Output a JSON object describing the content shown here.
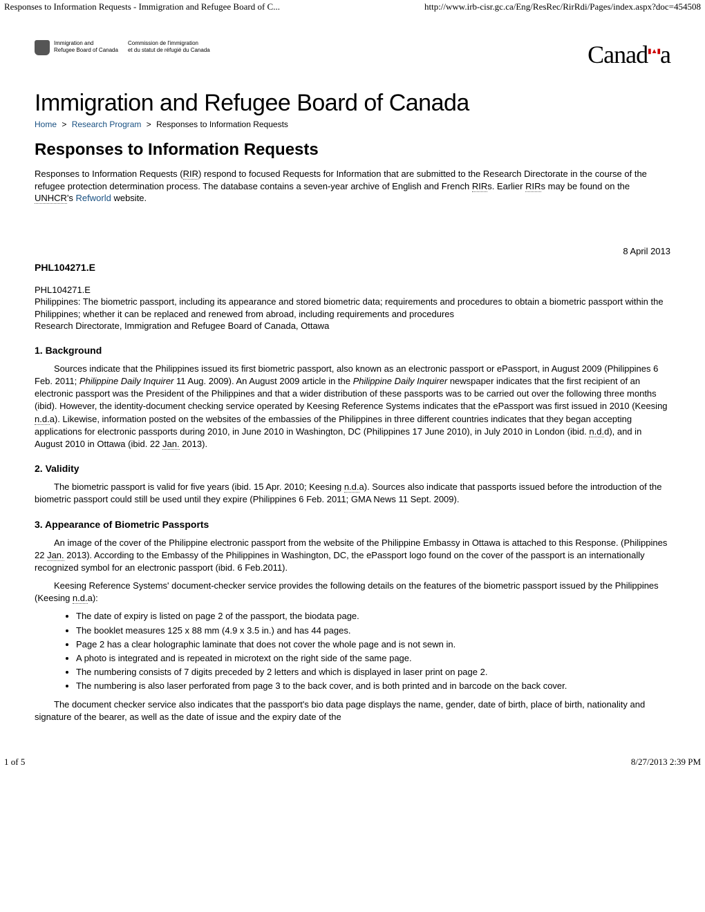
{
  "print": {
    "header_left": "Responses to Information Requests - Immigration and Refugee Board of C...",
    "header_right": "http://www.irb-cisr.gc.ca/Eng/ResRec/RirRdi/Pages/index.aspx?doc=454508",
    "footer_left": "1 of 5",
    "footer_right": "8/27/2013 2:39 PM"
  },
  "branding": {
    "en_line1": "Immigration and",
    "en_line2": "Refugee Board of Canada",
    "fr_line1": "Commission de l'immigration",
    "fr_line2": "et du statut de réfugié du Canada",
    "wordmark_left": "Canad",
    "wordmark_right": "a"
  },
  "site_title": "Immigration and Refugee Board of Canada",
  "breadcrumb": {
    "home": "Home",
    "research": "Research Program",
    "current": "Responses to Information Requests",
    "sep": ">"
  },
  "page_title": "Responses to Information Requests",
  "intro": {
    "pre1": "Responses to Information Requests (",
    "abbr1": "RIR",
    "mid1": ") respond to focused Requests for Information that are submitted to the Research Directorate in the course of the refugee protection determination process. The database contains a seven-year archive of English and French ",
    "abbr2": "RIR",
    "mid2": "s. Earlier ",
    "abbr3": "RIR",
    "mid3": "s may be found on the ",
    "abbr4": "UNHCR",
    "mid4": "'s ",
    "link": "Refworld",
    "post": " website."
  },
  "date": "8 April 2013",
  "rir_code": "PHL104271.E",
  "meta": {
    "code": "PHL104271.E",
    "title": "Philippines: The biometric passport, including its appearance and stored biometric data; requirements and procedures to obtain a biometric passport within the Philippines; whether it can be replaced and renewed from abroad, including requirements and procedures",
    "source": "Research Directorate, Immigration and Refugee Board of Canada, Ottawa"
  },
  "sections": {
    "background": {
      "heading": "1. Background",
      "p1a": "Sources indicate that the Philippines issued its first biometric passport, also known as an electronic passport or ePassport, in August 2009 (Philippines 6 Feb. 2011; ",
      "p1b_em": "Philippine Daily Inquirer",
      "p1c": " 11 Aug. 2009). An August 2009 article in the ",
      "p1d_em": "Philippine Daily Inquirer",
      "p1e": " newspaper indicates that the first recipient of an electronic passport was the President of the Philippines and that a wider distribution of these passports was to be carried out over the following three months (ibid). However, the identity-document checking service operated by Keesing Reference Systems indicates that the ePassport was first issued in 2010 (Keesing ",
      "p1f_ndA": "n.d.",
      "p1g": "a). Likewise, information posted on the websites of the embassies of the Philippines in three different countries indicates that they began accepting applications for electronic passports during 2010, in June 2010 in Washington, DC (Philippines 17 June 2010), in July 2010 in London (ibid. ",
      "p1h_ndD": "n.d.",
      "p1i": "d), and in August 2010 in Ottawa (ibid. 22 ",
      "p1j_jan": "Jan.",
      "p1k": " 2013)."
    },
    "validity": {
      "heading": "2. Validity",
      "p1a": "The biometric passport is valid for five years (ibid. 15 Apr. 2010; Keesing ",
      "p1b_nd": "n.d.",
      "p1c": "a). Sources also indicate that passports issued before the introduction of the biometric passport could still be used until they expire (Philippines 6 Feb. 2011; GMA News 11 Sept. 2009)."
    },
    "appearance": {
      "heading": "3. Appearance of Biometric Passports",
      "p1a": "An image of the cover of the Philippine electronic passport from the website of the Philippine Embassy in Ottawa is attached to this Response. (Philippines 22 ",
      "p1b_jan": "Jan.",
      "p1c": " 2013). According to the Embassy of the Philippines in Washington, DC, the ePassport logo found on the cover of the passport is an internationally recognized symbol for an electronic passport (ibid. 6 Feb.2011).",
      "p2a": "Keesing Reference Systems' document-checker service provides the following details on the features of the biometric passport issued by the Philippines (Keesing ",
      "p2b_nd": "n.d.",
      "p2c": "a):",
      "features": [
        "The date of expiry is listed on page 2 of the passport, the biodata page.",
        "The booklet measures 125 x 88 mm (4.9 x 3.5 in.) and has 44 pages.",
        "Page 2 has a clear holographic laminate that does not cover the whole page and is not sewn in.",
        "A photo is integrated and is repeated in microtext on the right side of the same page.",
        "The numbering consists of 7 digits preceded by 2 letters and which is displayed in laser print on page 2.",
        "The numbering is also laser perforated from page 3 to the back cover, and is both printed and in barcode on the back cover."
      ],
      "p3": "The document checker service also indicates that the passport's bio data page displays the name, gender, date of birth, place of birth, nationality and signature of the bearer, as well as the date of issue and the expiry date of the"
    }
  },
  "colors": {
    "link": "#174f81",
    "flag": "#cc0000",
    "text": "#000000",
    "background": "#ffffff",
    "dotted_border": "#666666"
  }
}
